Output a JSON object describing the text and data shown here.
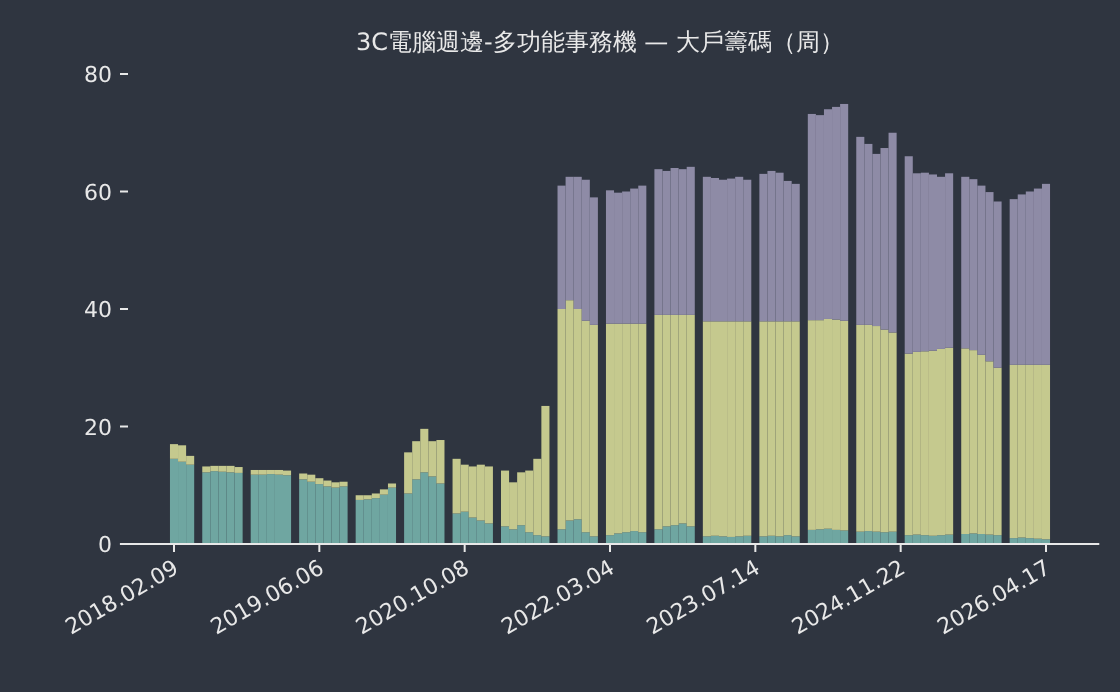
{
  "chart_data": {
    "type": "bar",
    "stacked": true,
    "title": "3C電腦週邊-多功能事務機 — 大戶籌碼（周）",
    "categories": [
      "2018.02.09",
      null,
      null,
      null,
      null,
      null,
      null,
      null,
      null,
      null,
      null,
      null,
      null,
      null,
      null,
      null,
      null,
      null,
      "2019.06.06",
      null,
      null,
      null,
      null,
      null,
      null,
      null,
      null,
      null,
      null,
      null,
      null,
      null,
      null,
      null,
      null,
      null,
      "2020.10.08",
      null,
      null,
      null,
      null,
      null,
      null,
      null,
      null,
      null,
      null,
      null,
      null,
      null,
      null,
      null,
      null,
      null,
      "2022.03.04",
      null,
      null,
      null,
      null,
      null,
      null,
      null,
      null,
      null,
      null,
      null,
      null,
      null,
      null,
      null,
      null,
      null,
      "2023.07.14",
      null,
      null,
      null,
      null,
      null,
      null,
      null,
      null,
      null,
      null,
      null,
      null,
      null,
      null,
      null,
      null,
      null,
      "2024.11.22",
      null,
      null,
      null,
      null,
      null,
      null,
      null,
      null,
      null,
      null,
      null,
      null,
      null,
      null,
      null,
      null,
      null,
      "2026.04.17"
    ],
    "series": [
      {
        "color": "#6fa6a1",
        "values": [
          14.5,
          14,
          13.5,
          null,
          12.2,
          12.4,
          12.3,
          12.2,
          12.1,
          null,
          11.8,
          11.8,
          11.9,
          11.8,
          11.7,
          null,
          11.0,
          10.6,
          10.2,
          9.8,
          9.6,
          9.8,
          null,
          7.5,
          7.6,
          7.8,
          8.4,
          9.6,
          null,
          8.6,
          11.0,
          12.2,
          11.5,
          10.3,
          null,
          5.2,
          5.5,
          4.5,
          4.0,
          3.5,
          null,
          3.0,
          2.5,
          3.2,
          2.0,
          1.5,
          1.3,
          null,
          2.5,
          4.0,
          4.2,
          2.0,
          1.3,
          null,
          1.5,
          1.8,
          2.0,
          2.2,
          2.0,
          null,
          2.5,
          3.0,
          3.2,
          3.5,
          3.0,
          null,
          1.3,
          1.4,
          1.3,
          1.2,
          1.3,
          1.4,
          null,
          1.3,
          1.4,
          1.3,
          1.5,
          1.3,
          null,
          2.4,
          2.5,
          2.6,
          2.4,
          2.3,
          null,
          2.1,
          2.2,
          2.1,
          2.0,
          2.1,
          null,
          1.5,
          1.6,
          1.5,
          1.4,
          1.5,
          1.6,
          null,
          1.7,
          1.8,
          1.7,
          1.6,
          1.5,
          null,
          1.0,
          1.1,
          1.0,
          0.9,
          0.8
        ]
      },
      {
        "color": "#c5c98e",
        "values": [
          2.5,
          2.8,
          1.5,
          null,
          1.0,
          0.9,
          1.0,
          1.1,
          1.0,
          null,
          0.8,
          0.8,
          0.7,
          0.8,
          0.8,
          null,
          1.0,
          1.2,
          1.0,
          1.0,
          0.9,
          0.8,
          null,
          0.8,
          0.7,
          0.8,
          0.9,
          0.7,
          null,
          7.0,
          6.5,
          7.4,
          6.0,
          7.4,
          null,
          9.3,
          8.0,
          8.7,
          9.5,
          9.7,
          null,
          9.5,
          8.0,
          9.0,
          10.5,
          13.0,
          22.2,
          null,
          37.5,
          37.5,
          35.8,
          36.0,
          36.0,
          null,
          36.0,
          35.7,
          35.5,
          35.3,
          35.5,
          null,
          36.5,
          36.0,
          35.8,
          35.5,
          36.0,
          null,
          36.6,
          36.5,
          36.6,
          36.7,
          36.6,
          36.5,
          null,
          36.6,
          36.5,
          36.6,
          36.4,
          36.6,
          null,
          35.7,
          35.6,
          35.7,
          35.8,
          35.7,
          null,
          35.2,
          35.1,
          35.0,
          34.5,
          33.9,
          null,
          30.9,
          31.1,
          31.3,
          31.5,
          31.7,
          31.8,
          null,
          31.6,
          31.2,
          30.5,
          29.5,
          28.5,
          null,
          29.5,
          29.4,
          29.5,
          29.6,
          29.7
        ]
      },
      {
        "color": "#8e8ba6",
        "values": [
          null,
          null,
          null,
          null,
          null,
          null,
          null,
          null,
          null,
          null,
          null,
          null,
          null,
          null,
          null,
          null,
          null,
          null,
          null,
          null,
          null,
          null,
          null,
          null,
          null,
          null,
          null,
          null,
          null,
          null,
          null,
          null,
          null,
          null,
          null,
          null,
          null,
          null,
          null,
          null,
          null,
          null,
          null,
          null,
          null,
          null,
          null,
          null,
          21.0,
          21.0,
          22.5,
          24.0,
          21.7,
          null,
          22.7,
          22.3,
          22.5,
          23.0,
          23.5,
          null,
          24.8,
          24.5,
          25.0,
          24.8,
          25.2,
          null,
          24.6,
          24.4,
          24.1,
          24.3,
          24.6,
          24.1,
          null,
          25.1,
          25.6,
          25.3,
          23.9,
          23.4,
          null,
          35.1,
          34.9,
          35.7,
          36.2,
          36.9,
          null,
          32.0,
          30.8,
          29.3,
          30.9,
          34.0,
          null,
          33.6,
          30.4,
          30.4,
          30.0,
          29.3,
          29.7,
          null,
          29.2,
          29.1,
          28.8,
          28.8,
          28.3,
          null,
          28.2,
          29.0,
          29.5,
          30.0,
          30.8
        ]
      }
    ],
    "ylim": [
      0,
      80
    ],
    "yticks": [
      0,
      20,
      40,
      60,
      80
    ]
  }
}
